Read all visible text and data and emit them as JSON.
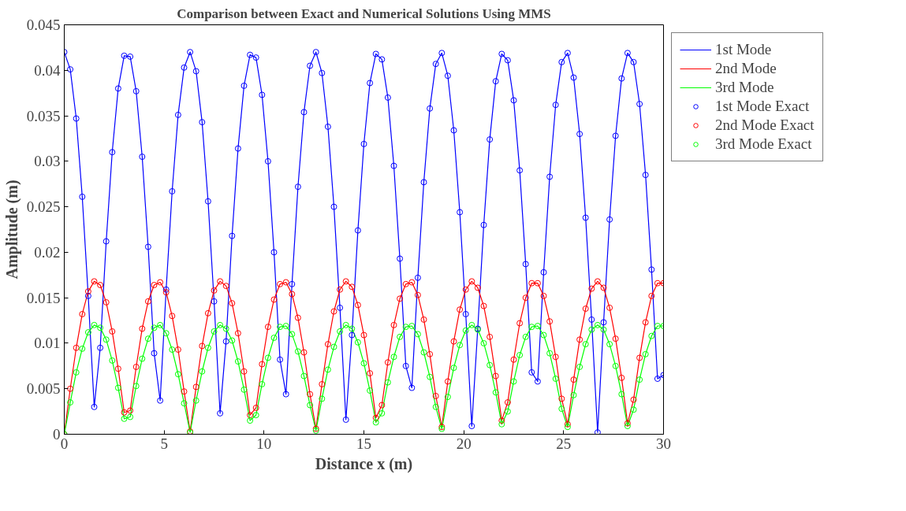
{
  "chart_data": {
    "type": "line",
    "title": "Comparison between Exact and Numerical Solutions Using MMS",
    "xlabel": "Distance x (m)",
    "ylabel": "Amplitude (m)",
    "x": [
      0,
      0.3,
      0.6,
      0.9,
      1.2,
      1.5,
      1.8,
      2.1,
      2.4,
      2.7,
      3.0,
      3.3,
      3.6,
      3.9,
      4.2,
      4.5,
      4.8,
      5.1,
      5.4,
      5.7,
      6.0,
      6.3,
      6.6,
      6.9,
      7.2,
      7.5,
      7.8,
      8.1,
      8.4,
      8.7,
      9.0,
      9.3,
      9.6,
      9.9,
      10.2,
      10.5,
      10.8,
      11.1,
      11.4,
      11.7,
      12.0,
      12.3,
      12.6,
      12.9,
      13.2,
      13.5,
      13.8,
      14.1,
      14.4,
      14.7,
      15.0,
      15.3,
      15.6,
      15.9,
      16.2,
      16.5,
      16.8,
      17.1,
      17.4,
      17.7,
      18.0,
      18.3,
      18.6,
      18.9,
      19.2,
      19.5,
      19.8,
      20.1,
      20.4,
      20.7,
      21.0,
      21.3,
      21.6,
      21.9,
      22.2,
      22.5,
      22.8,
      23.1,
      23.4,
      23.7,
      24.0,
      24.3,
      24.6,
      24.9,
      25.2,
      25.5,
      25.8,
      26.1,
      26.4,
      26.7,
      27.0,
      27.3,
      27.6,
      27.9,
      28.2,
      28.5,
      28.8,
      29.1,
      29.4,
      29.7,
      30.0
    ],
    "series": [
      {
        "name": "1st Mode",
        "color": "#0000ff",
        "values": [
          0.042,
          0.0401,
          0.0347,
          0.0261,
          0.0152,
          0.003,
          0.0095,
          0.0212,
          0.031,
          0.038,
          0.0416,
          0.0415,
          0.0377,
          0.0305,
          0.0206,
          0.0089,
          0.0037,
          0.0159,
          0.0267,
          0.0351,
          0.0403,
          0.042,
          0.0399,
          0.0343,
          0.0256,
          0.0146,
          0.0023,
          0.0102,
          0.0218,
          0.0314,
          0.0383,
          0.0417,
          0.0414,
          0.0373,
          0.03,
          0.02,
          0.0082,
          0.0044,
          0.0165,
          0.0272,
          0.0354,
          0.0405,
          0.042,
          0.0397,
          0.0338,
          0.025,
          0.0139,
          0.0016,
          0.0109,
          0.0224,
          0.0319,
          0.0386,
          0.0418,
          0.0412,
          0.037,
          0.0295,
          0.0193,
          0.0075,
          0.0051,
          0.0172,
          0.0277,
          0.0358,
          0.0407,
          0.0419,
          0.0394,
          0.0334,
          0.0244,
          0.0132,
          0.0009,
          0.0116,
          0.023,
          0.0324,
          0.0388,
          0.0418,
          0.0411,
          0.0367,
          0.029,
          0.0187,
          0.0068,
          0.0058,
          0.0178,
          0.0283,
          0.0362,
          0.0409,
          0.0419,
          0.0392,
          0.033,
          0.0238,
          0.0126,
          0.0002,
          0.0123,
          0.0236,
          0.0328,
          0.0391,
          0.0419,
          0.0409,
          0.0363,
          0.0285,
          0.0181,
          0.0061,
          0.0065
        ]
      },
      {
        "name": "2nd Mode",
        "color": "#ff0000",
        "values": [
          0,
          0.005,
          0.0095,
          0.0132,
          0.0157,
          0.0168,
          0.0164,
          0.0145,
          0.0113,
          0.0072,
          0.0024,
          0.0026,
          0.0074,
          0.0116,
          0.0146,
          0.0164,
          0.0167,
          0.0156,
          0.013,
          0.0093,
          0.0047,
          0.0003,
          0.0052,
          0.0097,
          0.0133,
          0.0158,
          0.0168,
          0.0163,
          0.0144,
          0.0111,
          0.0069,
          0.0021,
          0.0029,
          0.0077,
          0.0118,
          0.0148,
          0.0165,
          0.0167,
          0.0154,
          0.0128,
          0.009,
          0.0044,
          0.0006,
          0.0055,
          0.0099,
          0.0135,
          0.0159,
          0.0168,
          0.0162,
          0.0142,
          0.0109,
          0.0067,
          0.0018,
          0.0032,
          0.0079,
          0.012,
          0.0149,
          0.0165,
          0.0167,
          0.0153,
          0.0126,
          0.0088,
          0.0042,
          0.0008,
          0.0058,
          0.0102,
          0.0137,
          0.0159,
          0.0168,
          0.0161,
          0.0141,
          0.0107,
          0.0064,
          0.0015,
          0.0035,
          0.0082,
          0.0122,
          0.015,
          0.0166,
          0.0166,
          0.0152,
          0.0124,
          0.0085,
          0.0039,
          0.0011,
          0.006,
          0.0104,
          0.0138,
          0.016,
          0.0168,
          0.0161,
          0.0139,
          0.0105,
          0.0062,
          0.0012,
          0.0038,
          0.0084,
          0.0123,
          0.0152,
          0.0166,
          0.0166
        ]
      },
      {
        "name": "3rd Mode",
        "color": "#00ff00",
        "values": [
          0,
          0.0035,
          0.0068,
          0.0094,
          0.0112,
          0.012,
          0.0117,
          0.0104,
          0.0081,
          0.0051,
          0.0017,
          0.0019,
          0.0053,
          0.0083,
          0.0105,
          0.0117,
          0.012,
          0.0111,
          0.0093,
          0.0066,
          0.0034,
          0.0002,
          0.0037,
          0.0069,
          0.0095,
          0.0113,
          0.012,
          0.0116,
          0.0103,
          0.008,
          0.0049,
          0.0015,
          0.0021,
          0.0055,
          0.0084,
          0.0106,
          0.0118,
          0.0119,
          0.011,
          0.0091,
          0.0064,
          0.0032,
          0.0004,
          0.0039,
          0.0071,
          0.0096,
          0.0113,
          0.012,
          0.0116,
          0.0101,
          0.0078,
          0.0048,
          0.0013,
          0.0023,
          0.0057,
          0.0085,
          0.0107,
          0.0118,
          0.0119,
          0.011,
          0.009,
          0.0063,
          0.003,
          0.0006,
          0.0041,
          0.0073,
          0.0098,
          0.0114,
          0.012,
          0.0115,
          0.01,
          0.0076,
          0.0046,
          0.0011,
          0.0025,
          0.0058,
          0.0087,
          0.0107,
          0.0118,
          0.0119,
          0.0109,
          0.0089,
          0.0061,
          0.0028,
          0.0008,
          0.0043,
          0.0074,
          0.0099,
          0.0115,
          0.012,
          0.0115,
          0.0099,
          0.0075,
          0.0044,
          0.0009,
          0.0027,
          0.006,
          0.0088,
          0.0108,
          0.0119,
          0.0119
        ]
      },
      {
        "name": "1st Mode Exact",
        "type": "scatter",
        "marker": "circle",
        "color": "#0000ff",
        "values": [
          0.042,
          0.0401,
          0.0347,
          0.0261,
          0.0152,
          0.003,
          0.0095,
          0.0212,
          0.031,
          0.038,
          0.0416,
          0.0415,
          0.0377,
          0.0305,
          0.0206,
          0.0089,
          0.0037,
          0.0159,
          0.0267,
          0.0351,
          0.0403,
          0.042,
          0.0399,
          0.0343,
          0.0256,
          0.0146,
          0.0023,
          0.0102,
          0.0218,
          0.0314,
          0.0383,
          0.0417,
          0.0414,
          0.0373,
          0.03,
          0.02,
          0.0082,
          0.0044,
          0.0165,
          0.0272,
          0.0354,
          0.0405,
          0.042,
          0.0397,
          0.0338,
          0.025,
          0.0139,
          0.0016,
          0.0109,
          0.0224,
          0.0319,
          0.0386,
          0.0418,
          0.0412,
          0.037,
          0.0295,
          0.0193,
          0.0075,
          0.0051,
          0.0172,
          0.0277,
          0.0358,
          0.0407,
          0.0419,
          0.0394,
          0.0334,
          0.0244,
          0.0132,
          0.0009,
          0.0116,
          0.023,
          0.0324,
          0.0388,
          0.0418,
          0.0411,
          0.0367,
          0.029,
          0.0187,
          0.0068,
          0.0058,
          0.0178,
          0.0283,
          0.0362,
          0.0409,
          0.0419,
          0.0392,
          0.033,
          0.0238,
          0.0126,
          0.0002,
          0.0123,
          0.0236,
          0.0328,
          0.0391,
          0.0419,
          0.0409,
          0.0363,
          0.0285,
          0.0181,
          0.0061,
          0.0065
        ]
      },
      {
        "name": "2nd Mode Exact",
        "type": "scatter",
        "marker": "circle",
        "color": "#ff0000",
        "values": [
          0,
          0.005,
          0.0095,
          0.0132,
          0.0157,
          0.0168,
          0.0164,
          0.0145,
          0.0113,
          0.0072,
          0.0024,
          0.0026,
          0.0074,
          0.0116,
          0.0146,
          0.0164,
          0.0167,
          0.0156,
          0.013,
          0.0093,
          0.0047,
          0.0003,
          0.0052,
          0.0097,
          0.0133,
          0.0158,
          0.0168,
          0.0163,
          0.0144,
          0.0111,
          0.0069,
          0.0021,
          0.0029,
          0.0077,
          0.0118,
          0.0148,
          0.0165,
          0.0167,
          0.0154,
          0.0128,
          0.009,
          0.0044,
          0.0006,
          0.0055,
          0.0099,
          0.0135,
          0.0159,
          0.0168,
          0.0162,
          0.0142,
          0.0109,
          0.0067,
          0.0018,
          0.0032,
          0.0079,
          0.012,
          0.0149,
          0.0165,
          0.0167,
          0.0153,
          0.0126,
          0.0088,
          0.0042,
          0.0008,
          0.0058,
          0.0102,
          0.0137,
          0.0159,
          0.0168,
          0.0161,
          0.0141,
          0.0107,
          0.0064,
          0.0015,
          0.0035,
          0.0082,
          0.0122,
          0.015,
          0.0166,
          0.0166,
          0.0152,
          0.0124,
          0.0085,
          0.0039,
          0.0011,
          0.006,
          0.0104,
          0.0138,
          0.016,
          0.0168,
          0.0161,
          0.0139,
          0.0105,
          0.0062,
          0.0012,
          0.0038,
          0.0084,
          0.0123,
          0.0152,
          0.0166,
          0.0166
        ]
      },
      {
        "name": "3rd Mode Exact",
        "type": "scatter",
        "marker": "circle",
        "color": "#00ff00",
        "values": [
          0,
          0.0035,
          0.0068,
          0.0094,
          0.0112,
          0.012,
          0.0117,
          0.0104,
          0.0081,
          0.0051,
          0.0017,
          0.0019,
          0.0053,
          0.0083,
          0.0105,
          0.0117,
          0.012,
          0.0111,
          0.0093,
          0.0066,
          0.0034,
          0.0002,
          0.0037,
          0.0069,
          0.0095,
          0.0113,
          0.012,
          0.0116,
          0.0103,
          0.008,
          0.0049,
          0.0015,
          0.0021,
          0.0055,
          0.0084,
          0.0106,
          0.0118,
          0.0119,
          0.011,
          0.0091,
          0.0064,
          0.0032,
          0.0004,
          0.0039,
          0.0071,
          0.0096,
          0.0113,
          0.012,
          0.0116,
          0.0101,
          0.0078,
          0.0048,
          0.0013,
          0.0023,
          0.0057,
          0.0085,
          0.0107,
          0.0118,
          0.0119,
          0.011,
          0.009,
          0.0063,
          0.003,
          0.0006,
          0.0041,
          0.0073,
          0.0098,
          0.0114,
          0.012,
          0.0115,
          0.01,
          0.0076,
          0.0046,
          0.0011,
          0.0025,
          0.0058,
          0.0087,
          0.0107,
          0.0118,
          0.0119,
          0.0109,
          0.0089,
          0.0061,
          0.0028,
          0.0008,
          0.0043,
          0.0074,
          0.0099,
          0.0115,
          0.012,
          0.0115,
          0.0099,
          0.0075,
          0.0044,
          0.0009,
          0.0027,
          0.006,
          0.0088,
          0.0108,
          0.0119,
          0.0119
        ]
      }
    ],
    "xlim": [
      0,
      30
    ],
    "xticks": [
      0,
      5,
      10,
      15,
      20,
      25,
      30
    ],
    "ylim": [
      0,
      0.045
    ],
    "yticks": [
      0,
      0.005,
      0.01,
      0.015,
      0.02,
      0.025,
      0.03,
      0.035,
      0.04,
      0.045
    ],
    "grid": false,
    "legend": "right",
    "line_style": "solid"
  }
}
